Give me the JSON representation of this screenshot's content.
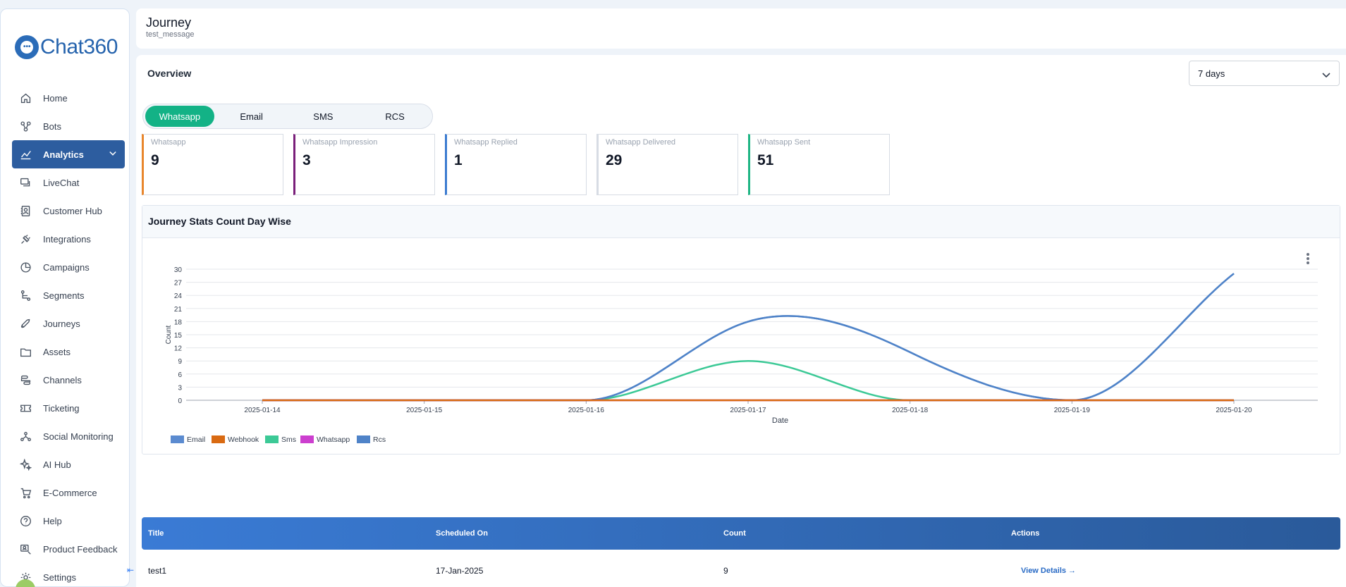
{
  "brand": {
    "name": "Chat360"
  },
  "sidebar": {
    "items": [
      {
        "label": "Home",
        "icon": "home-icon"
      },
      {
        "label": "Bots",
        "icon": "bots-icon"
      },
      {
        "label": "Analytics",
        "icon": "analytics-icon",
        "active": true
      },
      {
        "label": "LiveChat",
        "icon": "livechat-icon"
      },
      {
        "label": "Customer Hub",
        "icon": "contacts-icon"
      },
      {
        "label": "Integrations",
        "icon": "plug-icon"
      },
      {
        "label": "Campaigns",
        "icon": "pie-icon"
      },
      {
        "label": "Segments",
        "icon": "segments-icon"
      },
      {
        "label": "Journeys",
        "icon": "rocket-icon"
      },
      {
        "label": "Assets",
        "icon": "folder-icon"
      },
      {
        "label": "Channels",
        "icon": "channels-icon"
      },
      {
        "label": "Ticketing",
        "icon": "ticket-icon"
      },
      {
        "label": "Social Monitoring",
        "icon": "network-icon"
      },
      {
        "label": "AI Hub",
        "icon": "sparkle-icon"
      },
      {
        "label": "E-Commerce",
        "icon": "cart-icon"
      },
      {
        "label": "Help",
        "icon": "help-icon"
      },
      {
        "label": "Product Feedback",
        "icon": "feedback-icon"
      },
      {
        "label": "Settings",
        "icon": "gear-icon"
      }
    ]
  },
  "header": {
    "title": "Journey",
    "subtitle": "test_message"
  },
  "overview": {
    "title": "Overview",
    "range": "7 days",
    "tabs": [
      {
        "label": "Whatsapp",
        "active": true
      },
      {
        "label": "Email"
      },
      {
        "label": "SMS"
      },
      {
        "label": "RCS"
      }
    ],
    "cards": [
      {
        "label": "Whatsapp",
        "value": "9",
        "color": "#e8862d"
      },
      {
        "label": "Whatsapp Impression",
        "value": "3",
        "color": "#7a1f7a"
      },
      {
        "label": "Whatsapp Replied",
        "value": "1",
        "color": "#3b7bd0"
      },
      {
        "label": "Whatsapp Delivered",
        "value": "29",
        "color": "#d7dce4"
      },
      {
        "label": "Whatsapp Sent",
        "value": "51",
        "color": "#1fb584"
      }
    ]
  },
  "chart_panel": {
    "title": "Journey Stats Count Day Wise"
  },
  "chart_data": {
    "type": "line",
    "x": [
      "2025-01-14",
      "2025-01-15",
      "2025-01-16",
      "2025-01-17",
      "2025-01-18",
      "2025-01-19",
      "2025-01-20"
    ],
    "xlabel": "Date",
    "ylabel": "Count",
    "ylim": [
      0,
      30
    ],
    "yticks": [
      0,
      3,
      6,
      9,
      12,
      15,
      18,
      21,
      24,
      27,
      30
    ],
    "grid": true,
    "legend": "bottom-left",
    "series": [
      {
        "name": "Email",
        "color": "#5b8bd0",
        "values": [
          0,
          0,
          0,
          18,
          11,
          0,
          29
        ]
      },
      {
        "name": "Webhook",
        "color": "#d96a12",
        "values": [
          0,
          0,
          0,
          0,
          0,
          0,
          0
        ]
      },
      {
        "name": "Sms",
        "color": "#3cc996",
        "values": [
          0,
          0,
          0,
          9,
          0,
          0,
          0
        ]
      },
      {
        "name": "Whatsapp",
        "color": "#cc3fcf",
        "values": [
          0,
          0,
          0,
          0,
          0,
          0,
          0
        ]
      },
      {
        "name": "Rcs",
        "color": "#4f83c8",
        "values": [
          0,
          0,
          0,
          18,
          11,
          0,
          29
        ]
      }
    ]
  },
  "table": {
    "headers": [
      "Title",
      "Scheduled On",
      "Count",
      "Actions"
    ],
    "rows": [
      {
        "title": "test1",
        "scheduled_on": "17-Jan-2025",
        "count": "9",
        "action": "View Details →"
      }
    ]
  }
}
